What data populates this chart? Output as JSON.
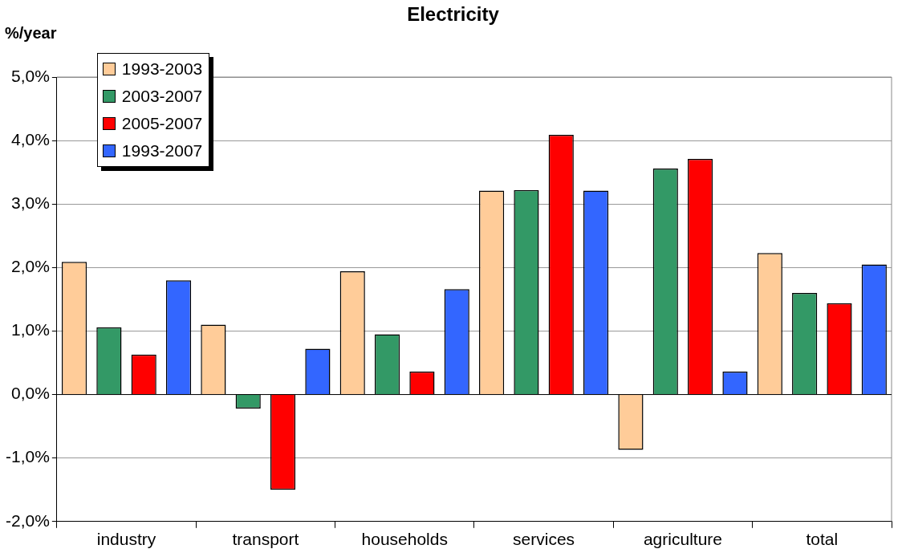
{
  "chart_data": {
    "type": "bar",
    "title": "Electricity",
    "ylabel": "%/year",
    "categories": [
      "industry",
      "transport",
      "households",
      "services",
      "agriculture",
      "total"
    ],
    "series": [
      {
        "name": "1993-2003",
        "color": "#ffcc99",
        "values": [
          2.09,
          1.1,
          1.94,
          3.21,
          -0.87,
          2.23
        ]
      },
      {
        "name": "2003-2007",
        "color": "#339966",
        "values": [
          1.06,
          -0.22,
          0.95,
          3.22,
          3.56,
          1.6
        ]
      },
      {
        "name": "2005-2007",
        "color": "#ff0000",
        "values": [
          0.63,
          -1.5,
          0.36,
          4.09,
          3.71,
          1.44
        ]
      },
      {
        "name": "1993-2007",
        "color": "#3366ff",
        "values": [
          1.8,
          0.72,
          1.66,
          3.21,
          0.36,
          2.05
        ]
      }
    ],
    "ylim": [
      -2,
      5
    ],
    "yticks": [
      {
        "value": -2,
        "label": "-2,0%"
      },
      {
        "value": -1,
        "label": "-1,0%"
      },
      {
        "value": 0,
        "label": "0,0%"
      },
      {
        "value": 1,
        "label": "1,0%"
      },
      {
        "value": 2,
        "label": "2,0%"
      },
      {
        "value": 3,
        "label": "3,0%"
      },
      {
        "value": 4,
        "label": "4,0%"
      },
      {
        "value": 5,
        "label": "5,0%"
      }
    ],
    "grid": "y",
    "legend": "top left"
  }
}
